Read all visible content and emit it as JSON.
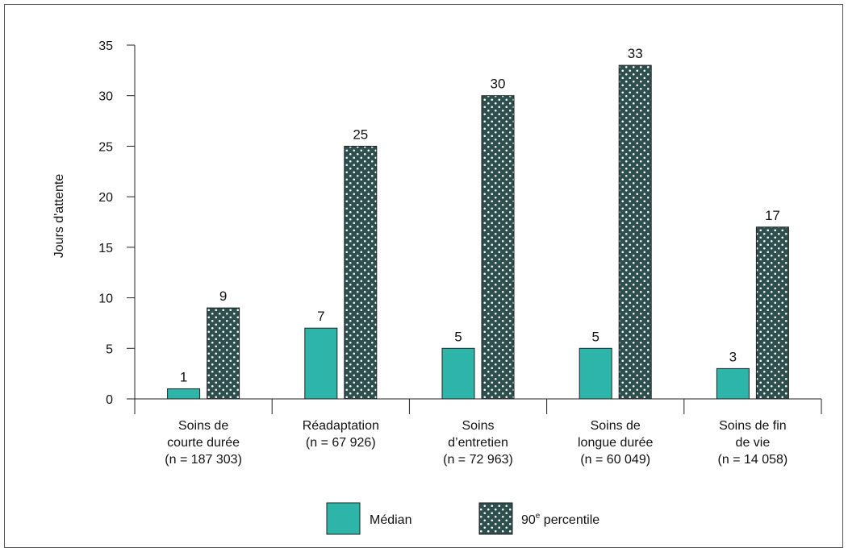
{
  "chart_data": {
    "type": "bar",
    "ylabel": "Jours d'attente",
    "xlabel": "",
    "ylim": [
      0,
      35
    ],
    "yticks": [
      "0",
      "5",
      "10",
      "15",
      "20",
      "25",
      "30",
      "35"
    ],
    "categories": [
      [
        "Soins de",
        "courte durée",
        "(n = 187 303)"
      ],
      [
        "Réadaptation",
        "(n = 67 926)"
      ],
      [
        "Soins",
        "d’entretien",
        "(n = 72 963)"
      ],
      [
        "Soins de",
        "longue durée",
        "(n = 60 049)"
      ],
      [
        "Soins de fin",
        "de vie",
        "(n = 14 058)"
      ]
    ],
    "series": [
      {
        "name": "Médian",
        "values": [
          1,
          7,
          5,
          5,
          3
        ],
        "color": "#2EB5AA"
      },
      {
        "name": "90e percentile",
        "name_base": "90",
        "name_sup": "e",
        "name_rest": " percentile",
        "values": [
          9,
          25,
          30,
          33,
          17
        ],
        "color": "#2D4F4D",
        "pattern": "white-dots"
      }
    ],
    "legend_position": "bottom",
    "grid": false
  }
}
